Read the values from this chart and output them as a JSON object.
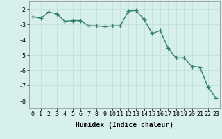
{
  "x": [
    0,
    1,
    2,
    3,
    4,
    5,
    6,
    7,
    8,
    9,
    10,
    11,
    12,
    13,
    14,
    15,
    16,
    17,
    18,
    19,
    20,
    21,
    22,
    23
  ],
  "y": [
    -2.5,
    -2.6,
    -2.2,
    -2.3,
    -2.8,
    -2.75,
    -2.75,
    -3.1,
    -3.1,
    -3.15,
    -3.1,
    -3.1,
    -2.15,
    -2.1,
    -2.7,
    -3.6,
    -3.4,
    -4.55,
    -5.2,
    -5.2,
    -5.75,
    -5.8,
    -7.1,
    -7.8
  ],
  "line_color": "#2e7d6e",
  "marker": "+",
  "marker_size": 4,
  "linewidth": 1.0,
  "xlabel": "Humidex (Indice chaleur)",
  "xlabel_fontsize": 7,
  "xlim": [
    -0.5,
    23.5
  ],
  "ylim": [
    -8.5,
    -1.5
  ],
  "yticks": [
    -8,
    -7,
    -6,
    -5,
    -4,
    -3,
    -2
  ],
  "xticks": [
    0,
    1,
    2,
    3,
    4,
    5,
    6,
    7,
    8,
    9,
    10,
    11,
    12,
    13,
    14,
    15,
    16,
    17,
    18,
    19,
    20,
    21,
    22,
    23
  ],
  "background_color": "#d8f0ec",
  "grid_color": "#c0ddd8",
  "tick_fontsize": 6,
  "title": ""
}
